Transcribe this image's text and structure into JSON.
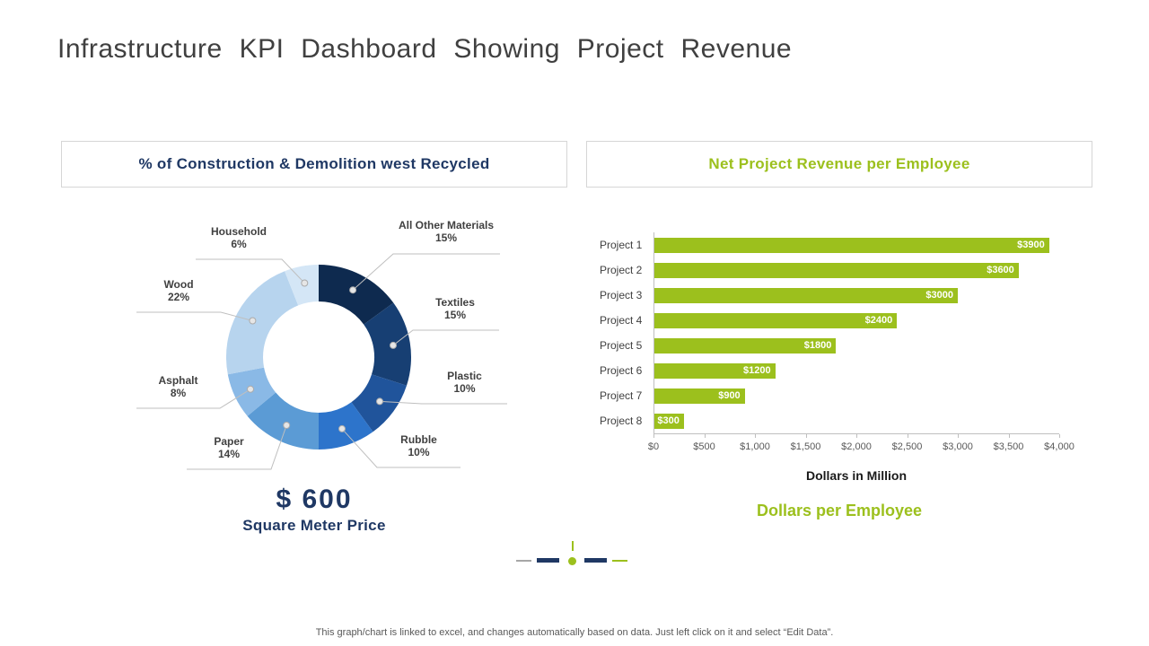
{
  "page": {
    "title": "Infrastructure KPI Dashboard Showing Project Revenue",
    "footer": "This graph/chart is linked to excel,  and changes automatically based on data. Just left click on it and select “Edit Data”."
  },
  "left_panel": {
    "header": "% of Construction & Demolition west Recycled",
    "center_value": "$ 600",
    "center_caption": "Square Meter Price"
  },
  "right_panel": {
    "header": "Net Project Revenue per Employee",
    "axis_title": "Dollars in Million",
    "caption": "Dollars per Employee"
  },
  "chart_data": [
    {
      "type": "pie",
      "donut": true,
      "title": "% of Construction & Demolition west Recycled",
      "labels": [
        "All Other Materials",
        "Textiles",
        "Plastic",
        "Rubble",
        "Paper",
        "Asphalt",
        "Wood",
        "Household"
      ],
      "values": [
        15,
        15,
        10,
        10,
        14,
        8,
        22,
        6
      ],
      "pct_labels": [
        "15%",
        "15%",
        "10%",
        "10%",
        "14%",
        "8%",
        "22%",
        "6%"
      ],
      "colors": [
        "#0e2a4f",
        "#173f73",
        "#20549b",
        "#2d74cb",
        "#5b9bd5",
        "#8ab9e6",
        "#b7d4ee",
        "#d4e6f6"
      ],
      "center_label": "$ 600",
      "center_sub": "Square Meter Price"
    },
    {
      "type": "bar",
      "orientation": "horizontal",
      "title": "Net Project Revenue per Employee",
      "categories": [
        "Project 1",
        "Project 2",
        "Project 3",
        "Project 4",
        "Project 5",
        "Project 6",
        "Project 7",
        "Project 8"
      ],
      "values": [
        3900,
        3600,
        3000,
        2400,
        1800,
        1200,
        900,
        300
      ],
      "value_labels": [
        "$3900",
        "$3600",
        "$3000",
        "$2400",
        "$1800",
        "$1200",
        "$900",
        "$300"
      ],
      "xlim": [
        0,
        4000
      ],
      "x_ticks": [
        "$0",
        "$500",
        "$1,000",
        "$1,500",
        "$2,000",
        "$2,500",
        "$3,000",
        "$3,500",
        "$4,000"
      ],
      "xlabel": "Dollars in Million",
      "bar_color": "#9cc01d",
      "grid": false,
      "legend": false
    }
  ],
  "colors": {
    "accent_green": "#9cc01d",
    "navy": "#1f3864",
    "title_gray": "#404040",
    "axis_gray": "#bfbfbf"
  }
}
